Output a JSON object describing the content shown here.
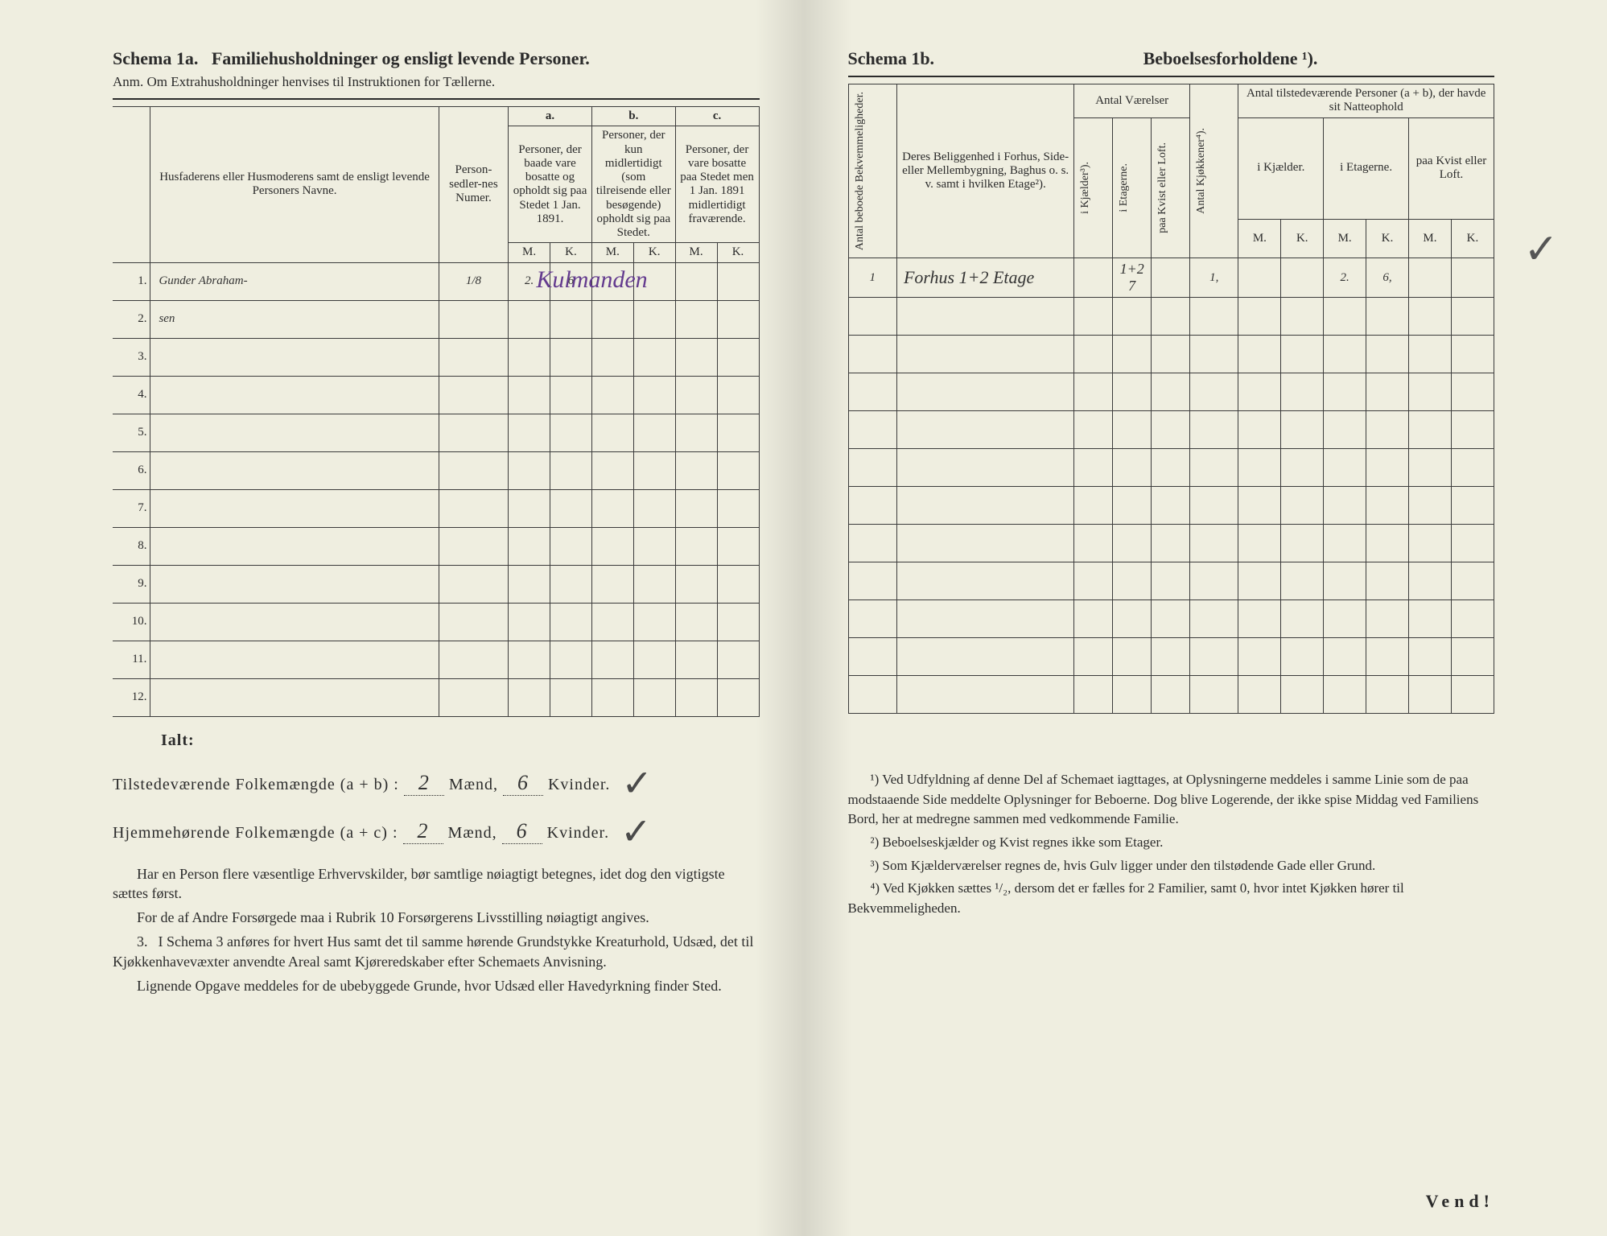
{
  "page_bg": "#efeee0",
  "ink": "#2b2b2b",
  "handwriting_color": "#333333",
  "purple_ink": "#633a8e",
  "left": {
    "schema_label": "Schema 1a.",
    "schema_title": "Familiehusholdninger og ensligt levende Personer.",
    "anm": "Anm. Om Extrahusholdninger henvises til Instruktionen for Tællerne.",
    "col_name": "Husfaderens eller Husmoderens samt de ensligt levende Personers Navne.",
    "col_num": "Person-sedler-nes Numer.",
    "group_a": "a.",
    "group_b": "b.",
    "group_c": "c.",
    "col_a": "Personer, der baade vare bosatte og opholdt sig paa Stedet 1 Jan. 1891.",
    "col_b": "Personer, der kun midlertidigt (som tilreisende eller besøgende) opholdt sig paa Stedet.",
    "col_c": "Personer, der vare bosatte paa Stedet men 1 Jan. 1891 midlertidigt fraværende.",
    "M": "M.",
    "K": "K.",
    "rows": [
      {
        "n": "1.",
        "name": "Gunder Abraham-",
        "num": "1/8",
        "aM": "2.",
        "aK": "6",
        "bM": "",
        "bK": "",
        "cM": "",
        "cK": "",
        "overlay": "Kulmanden"
      },
      {
        "n": "2.",
        "name": "sen",
        "num": "",
        "aM": "",
        "aK": "",
        "bM": "",
        "bK": "",
        "cM": "",
        "cK": ""
      },
      {
        "n": "3.",
        "name": "",
        "num": "",
        "aM": "",
        "aK": "",
        "bM": "",
        "bK": "",
        "cM": "",
        "cK": ""
      },
      {
        "n": "4.",
        "name": "",
        "num": "",
        "aM": "",
        "aK": "",
        "bM": "",
        "bK": "",
        "cM": "",
        "cK": ""
      },
      {
        "n": "5.",
        "name": "",
        "num": "",
        "aM": "",
        "aK": "",
        "bM": "",
        "bK": "",
        "cM": "",
        "cK": ""
      },
      {
        "n": "6.",
        "name": "",
        "num": "",
        "aM": "",
        "aK": "",
        "bM": "",
        "bK": "",
        "cM": "",
        "cK": ""
      },
      {
        "n": "7.",
        "name": "",
        "num": "",
        "aM": "",
        "aK": "",
        "bM": "",
        "bK": "",
        "cM": "",
        "cK": ""
      },
      {
        "n": "8.",
        "name": "",
        "num": "",
        "aM": "",
        "aK": "",
        "bM": "",
        "bK": "",
        "cM": "",
        "cK": ""
      },
      {
        "n": "9.",
        "name": "",
        "num": "",
        "aM": "",
        "aK": "",
        "bM": "",
        "bK": "",
        "cM": "",
        "cK": ""
      },
      {
        "n": "10.",
        "name": "",
        "num": "",
        "aM": "",
        "aK": "",
        "bM": "",
        "bK": "",
        "cM": "",
        "cK": ""
      },
      {
        "n": "11.",
        "name": "",
        "num": "",
        "aM": "",
        "aK": "",
        "bM": "",
        "bK": "",
        "cM": "",
        "cK": ""
      },
      {
        "n": "12.",
        "name": "",
        "num": "",
        "aM": "",
        "aK": "",
        "bM": "",
        "bK": "",
        "cM": "",
        "cK": ""
      }
    ],
    "ialt": "Ialt:",
    "tot1_label": "Tilstedeværende Folkemængde (a + b) :",
    "tot2_label": "Hjemmehørende Folkemængde (a + c) :",
    "maend": "Mænd,",
    "kvinder": "Kvinder.",
    "tot1_m": "2",
    "tot1_k": "6",
    "tot2_m": "2",
    "tot2_k": "6",
    "para1": "Har en Person flere væsentlige Erhvervskilder, bør samtlige nøiagtigt betegnes, idet dog den vigtigste sættes først.",
    "para2": "For de af Andre Forsørgede maa i Rubrik 10 Forsørgerens Livsstilling nøiagtigt angives.",
    "para3_lead": "3.",
    "para3": "I Schema 3 anføres for hvert Hus samt det til samme hørende Grundstykke Kreaturhold, Udsæd, det til Kjøkkenhavevæxter anvendte Areal samt Kjøreredskaber efter Schemaets Anvisning.",
    "para4": "Lignende Opgave meddeles for de ubebyggede Grunde, hvor Udsæd eller Havedyrkning finder Sted."
  },
  "right": {
    "schema_label": "Schema 1b.",
    "schema_title": "Beboelsesforholdene ¹).",
    "col_bekv": "Antal beboede Bekvemmeligheder.",
    "col_belig": "Deres Beliggenhed i Forhus, Side- eller Mellembygning, Baghus o. s. v. samt i hvilken Etage²).",
    "grp_vaer": "Antal Værelser",
    "sub_kj": "i Kjælder³).",
    "sub_et": "i Etagerne.",
    "sub_kv": "paa Kvist eller Loft.",
    "col_kjok": "Antal Kjøkkener⁴).",
    "grp_pers": "Antal tilstedeværende Personer (a + b), der havde sit Natteophold",
    "sub2_kj": "i Kjælder.",
    "sub2_et": "i Etagerne.",
    "sub2_kv": "paa Kvist eller Loft.",
    "M": "M.",
    "K": "K.",
    "rows": [
      {
        "bekv": "1",
        "belig": "Forhus 1+2 Etage",
        "vkj": "",
        "vet": "1+2 7",
        "vkv": "",
        "kjok": "1,",
        "kjM": "",
        "kjK": "",
        "etM": "2.",
        "etK": "6,",
        "kvM": "",
        "kvK": ""
      },
      {
        "bekv": "",
        "belig": "",
        "vkj": "",
        "vet": "",
        "vkv": "",
        "kjok": "",
        "kjM": "",
        "kjK": "",
        "etM": "",
        "etK": "",
        "kvM": "",
        "kvK": ""
      },
      {
        "bekv": "",
        "belig": "",
        "vkj": "",
        "vet": "",
        "vkv": "",
        "kjok": "",
        "kjM": "",
        "kjK": "",
        "etM": "",
        "etK": "",
        "kvM": "",
        "kvK": ""
      },
      {
        "bekv": "",
        "belig": "",
        "vkj": "",
        "vet": "",
        "vkv": "",
        "kjok": "",
        "kjM": "",
        "kjK": "",
        "etM": "",
        "etK": "",
        "kvM": "",
        "kvK": ""
      },
      {
        "bekv": "",
        "belig": "",
        "vkj": "",
        "vet": "",
        "vkv": "",
        "kjok": "",
        "kjM": "",
        "kjK": "",
        "etM": "",
        "etK": "",
        "kvM": "",
        "kvK": ""
      },
      {
        "bekv": "",
        "belig": "",
        "vkj": "",
        "vet": "",
        "vkv": "",
        "kjok": "",
        "kjM": "",
        "kjK": "",
        "etM": "",
        "etK": "",
        "kvM": "",
        "kvK": ""
      },
      {
        "bekv": "",
        "belig": "",
        "vkj": "",
        "vet": "",
        "vkv": "",
        "kjok": "",
        "kjM": "",
        "kjK": "",
        "etM": "",
        "etK": "",
        "kvM": "",
        "kvK": ""
      },
      {
        "bekv": "",
        "belig": "",
        "vkj": "",
        "vet": "",
        "vkv": "",
        "kjok": "",
        "kjM": "",
        "kjK": "",
        "etM": "",
        "etK": "",
        "kvM": "",
        "kvK": ""
      },
      {
        "bekv": "",
        "belig": "",
        "vkj": "",
        "vet": "",
        "vkv": "",
        "kjok": "",
        "kjM": "",
        "kjK": "",
        "etM": "",
        "etK": "",
        "kvM": "",
        "kvK": ""
      },
      {
        "bekv": "",
        "belig": "",
        "vkj": "",
        "vet": "",
        "vkv": "",
        "kjok": "",
        "kjM": "",
        "kjK": "",
        "etM": "",
        "etK": "",
        "kvM": "",
        "kvK": ""
      },
      {
        "bekv": "",
        "belig": "",
        "vkj": "",
        "vet": "",
        "vkv": "",
        "kjok": "",
        "kjM": "",
        "kjK": "",
        "etM": "",
        "etK": "",
        "kvM": "",
        "kvK": ""
      },
      {
        "bekv": "",
        "belig": "",
        "vkj": "",
        "vet": "",
        "vkv": "",
        "kjok": "",
        "kjM": "",
        "kjK": "",
        "etM": "",
        "etK": "",
        "kvM": "",
        "kvK": ""
      }
    ],
    "fn1": "¹) Ved Udfyldning af denne Del af Schemaet iagttages, at Oplysningerne meddeles i samme Linie som de paa modstaaende Side meddelte Oplysninger for Beboerne. Dog blive Logerende, der ikke spise Middag ved Familiens Bord, her at medregne sammen med vedkommende Familie.",
    "fn2": "²) Beboelseskjælder og Kvist regnes ikke som Etager.",
    "fn3": "³) Som Kjælderværelser regnes de, hvis Gulv ligger under den tilstødende Gade eller Grund.",
    "fn4": "⁴) Ved Kjøkken sættes ¹/₂, dersom det er fælles for 2 Familier, samt 0, hvor intet Kjøkken hører til Bekvemmeligheden.",
    "vend": "Vend!"
  }
}
